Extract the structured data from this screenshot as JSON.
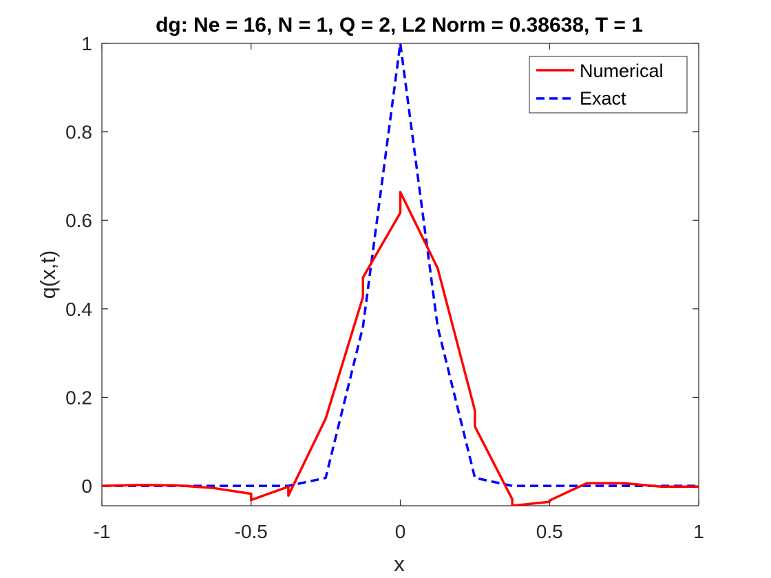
{
  "chart_data": {
    "type": "line",
    "title": "dg: Ne = 16, N = 1, Q = 2, L2 Norm = 0.38638, T = 1",
    "xlabel": "x",
    "ylabel": "q(x,t)",
    "xlim": [
      -1,
      1
    ],
    "ylim": [
      -0.045,
      1
    ],
    "xticks": [
      -1,
      -0.5,
      0,
      0.5,
      1
    ],
    "xtick_labels": [
      "-1",
      "-0.5",
      "0",
      "0.5",
      "1"
    ],
    "yticks": [
      0,
      0.2,
      0.4,
      0.6,
      0.8,
      1
    ],
    "ytick_labels": [
      "0",
      "0.2",
      "0.4",
      "0.6",
      "0.8",
      "1"
    ],
    "grid": false,
    "legend_position": "top-right",
    "series": [
      {
        "name": "Numerical",
        "color": "#ff0000",
        "style": "solid",
        "x": [
          -1,
          -0.875,
          -0.75,
          -0.625,
          -0.5,
          -0.5,
          -0.375,
          -0.375,
          -0.25,
          -0.125,
          -0.125,
          0,
          0,
          0.125,
          0.25,
          0.25,
          0.375,
          0.375,
          0.5,
          0.5,
          0.625,
          0.75,
          0.875,
          1
        ],
        "y": [
          0,
          0.002,
          0.001,
          -0.005,
          -0.018,
          -0.032,
          -0.002,
          -0.022,
          0.152,
          0.427,
          0.471,
          0.617,
          0.664,
          0.492,
          0.17,
          0.134,
          -0.03,
          -0.045,
          -0.036,
          -0.033,
          0.006,
          0.006,
          -0.002,
          -0.002
        ]
      },
      {
        "name": "Exact",
        "color": "#0000ff",
        "style": "dashed",
        "x": [
          -1,
          -0.375,
          -0.25,
          -0.125,
          0,
          0.125,
          0.25,
          0.375,
          1
        ],
        "y": [
          0,
          0,
          0.018,
          0.36,
          1,
          0.36,
          0.018,
          0,
          0
        ]
      }
    ]
  }
}
